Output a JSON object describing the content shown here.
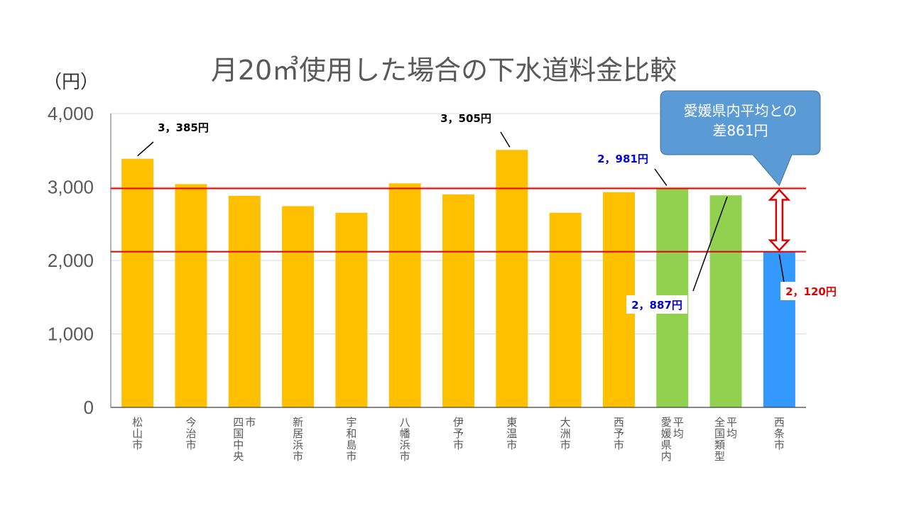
{
  "chart_data": {
    "type": "bar",
    "title": "月20㎥使用した場合の下水道料金比較",
    "ylabel": "（円）",
    "ylim": [
      0,
      4000
    ],
    "yticks": [
      0,
      1000,
      2000,
      3000,
      4000
    ],
    "ytick_labels": [
      "0",
      "1,000",
      "2,000",
      "3,000",
      "4,000"
    ],
    "grid": true,
    "categories": [
      "松山市",
      "今治市",
      "四国中央市",
      "新居浜市",
      "宇和島市",
      "八幡浜市",
      "伊予市",
      "東温市",
      "大洲市",
      "西予市",
      "愛媛県内平均",
      "全国類型平均",
      "西条市"
    ],
    "values": [
      3385,
      3040,
      2880,
      2740,
      2650,
      3050,
      2900,
      3505,
      2650,
      2930,
      2981,
      2887,
      2120
    ],
    "bar_colors": [
      "#FFC000",
      "#FFC000",
      "#FFC000",
      "#FFC000",
      "#FFC000",
      "#FFC000",
      "#FFC000",
      "#FFC000",
      "#FFC000",
      "#FFC000",
      "#92D050",
      "#92D050",
      "#3399FF"
    ],
    "reference_lines": [
      {
        "value": 2981,
        "color": "#E00000"
      },
      {
        "value": 2120,
        "color": "#E00000"
      }
    ],
    "data_labels": [
      {
        "category": "松山市",
        "text": "3，385円",
        "color": "#000000"
      },
      {
        "category": "東温市",
        "text": "3，505円",
        "color": "#000000"
      },
      {
        "category": "愛媛県内平均",
        "text": "2，981円",
        "color": "#0000E0"
      },
      {
        "category": "全国類型平均",
        "text": "2，887円",
        "color": "#0000E0"
      },
      {
        "category": "西条市",
        "text": "2，120円",
        "color": "#E00000"
      }
    ],
    "callout": {
      "lines": [
        "愛媛県内平均との",
        "差861円"
      ],
      "fill": "#5B9BD5"
    }
  }
}
